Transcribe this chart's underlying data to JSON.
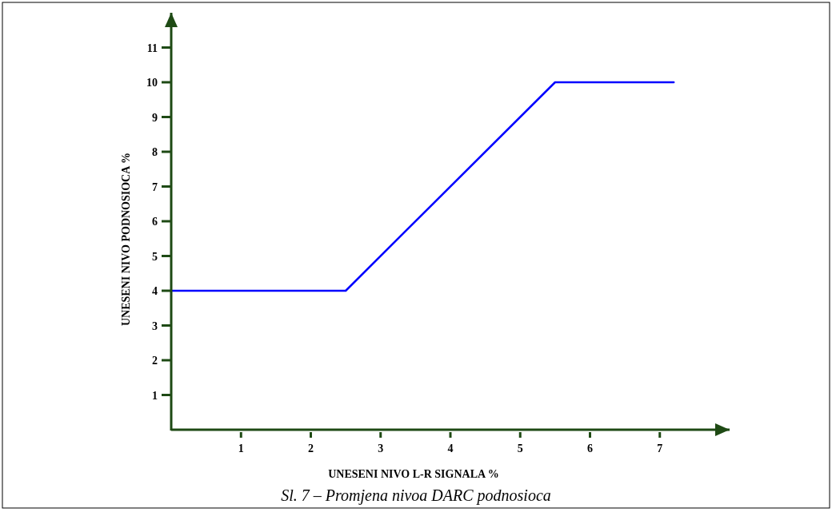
{
  "chart_data": {
    "type": "line",
    "xlabel": "UNESENI NIVO L-R SIGNALA %",
    "ylabel": "UNESENI NIVO PODNOSIOCA %",
    "annotations": [
      "Sl. 7 – Promjena nivoa DARC podnosioca"
    ],
    "x": [
      0,
      2.5,
      5.5,
      7.2
    ],
    "series": [
      {
        "color": "#0000ff",
        "values": [
          4,
          4,
          10,
          10
        ]
      }
    ],
    "xlim": [
      0,
      8
    ],
    "ylim": [
      0,
      12
    ],
    "xticks": [
      1,
      2,
      3,
      4,
      5,
      6,
      7
    ],
    "yticks": [
      1,
      2,
      3,
      4,
      5,
      6,
      7,
      8,
      9,
      10,
      11
    ],
    "grid": false,
    "marker": "none",
    "line_style": "solid"
  }
}
